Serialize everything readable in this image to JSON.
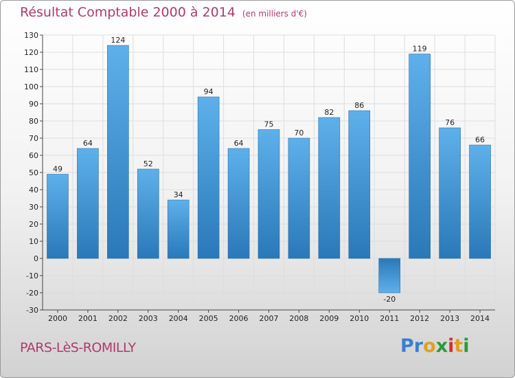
{
  "title": "Résultat Comptable 2000 à 2014",
  "unit": "(en milliers d'€)",
  "commune": "PARS-LèS-ROMILLY",
  "logo": {
    "letters": [
      "P",
      "r",
      "o",
      "x",
      "i",
      "t",
      "i"
    ],
    "colors": [
      "#3a7fd0",
      "#3a7fd0",
      "#e0a020",
      "#2a9a3a",
      "#d03030",
      "#e0a020",
      "#2a9a3a"
    ]
  },
  "chart_data": {
    "type": "bar",
    "categories": [
      "2000",
      "2001",
      "2002",
      "2003",
      "2004",
      "2005",
      "2006",
      "2007",
      "2008",
      "2009",
      "2010",
      "2011",
      "2012",
      "2013",
      "2014"
    ],
    "values": [
      49,
      64,
      124,
      52,
      34,
      94,
      64,
      75,
      70,
      82,
      86,
      -20,
      119,
      76,
      66
    ],
    "ylim": [
      -30,
      130
    ],
    "yticks": [
      -30,
      -20,
      -10,
      0,
      10,
      20,
      30,
      40,
      50,
      60,
      70,
      80,
      90,
      100,
      110,
      120,
      130
    ],
    "grid": true,
    "bar_color_top": "#5eb0ea",
    "bar_color_bottom": "#2a78b8"
  }
}
